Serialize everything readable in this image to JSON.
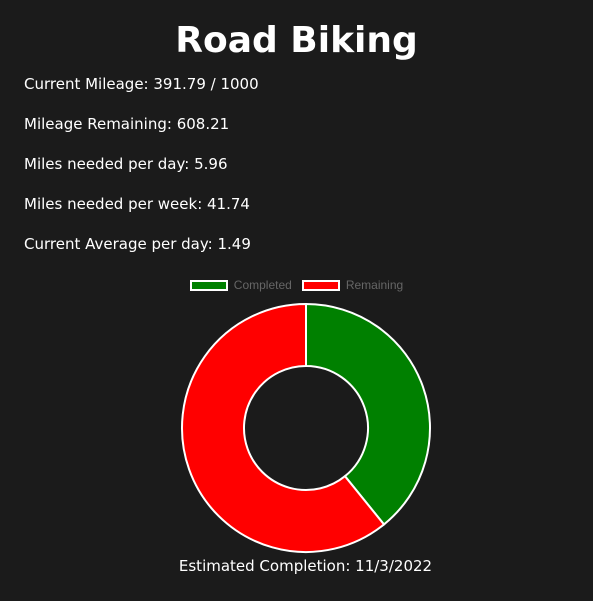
{
  "page": {
    "title": "Road Biking",
    "stats": [
      "Current Mileage: 391.79 / 1000",
      "Mileage Remaining: 608.21",
      "Miles needed per day: 5.96",
      "Miles needed per week: 41.74",
      "Current Average per day: 1.49"
    ],
    "footer": "Estimated Completion: 11/3/2022"
  },
  "chart_data": {
    "type": "pie",
    "categories": [
      "Completed",
      "Remaining"
    ],
    "values": [
      391.79,
      608.21
    ],
    "colors": [
      "#008000",
      "#ff0000"
    ],
    "legend_position": "top"
  }
}
